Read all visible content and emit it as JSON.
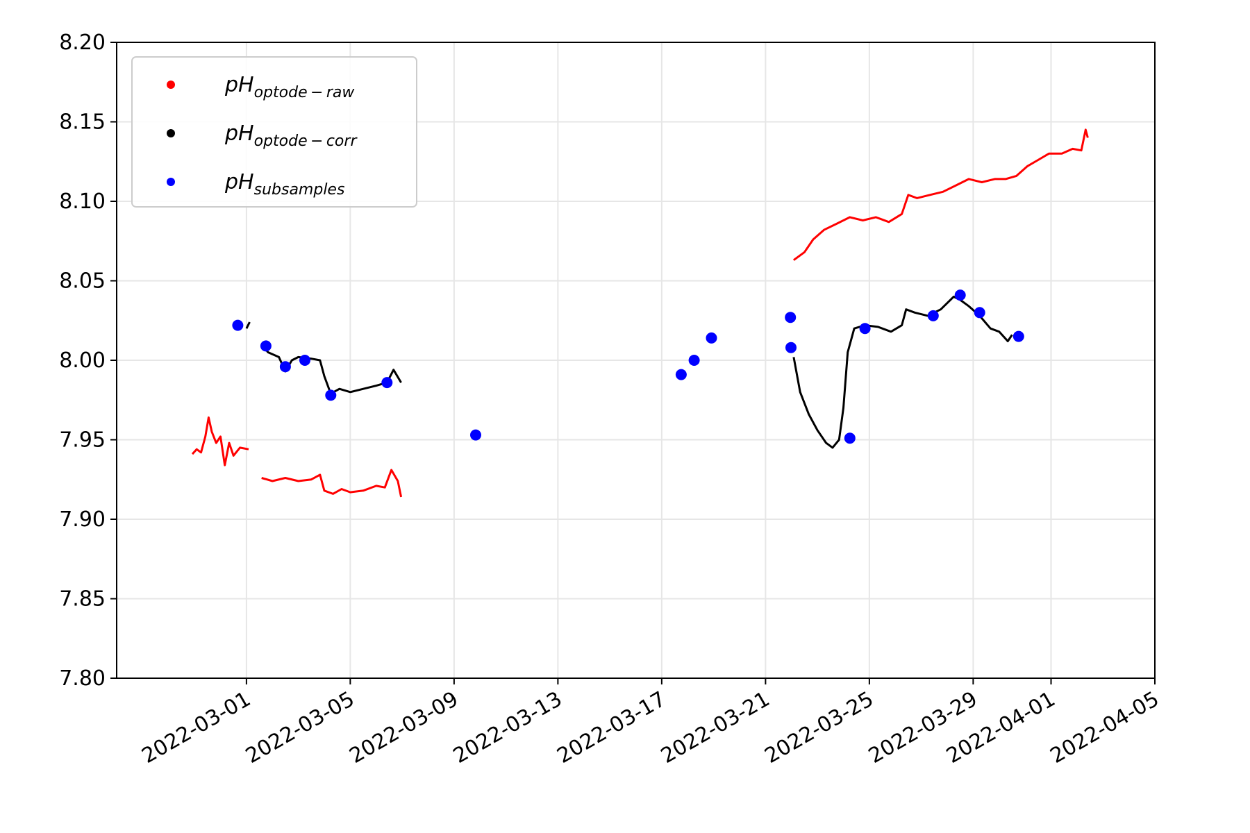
{
  "chart_data": {
    "type": "line",
    "title": "",
    "xlabel": "",
    "ylabel": "",
    "xlim": [
      "2022-02-24",
      "2022-04-05"
    ],
    "ylim": [
      7.8,
      8.2
    ],
    "grid": true,
    "legend_position": "top-left",
    "x_ticks": [
      "2022-03-01",
      "2022-03-05",
      "2022-03-09",
      "2022-03-13",
      "2022-03-17",
      "2022-03-21",
      "2022-03-25",
      "2022-03-29",
      "2022-04-01",
      "2022-04-05"
    ],
    "y_ticks": [
      "7.80",
      "7.85",
      "7.90",
      "7.95",
      "8.00",
      "8.05",
      "8.10",
      "8.15",
      "8.20"
    ],
    "legend": [
      {
        "base": "pH",
        "sub": "optode − raw",
        "color": "#ff0000"
      },
      {
        "base": "pH",
        "sub": "optode − corr",
        "color": "#000000"
      },
      {
        "base": "pH",
        "sub": "subsamples",
        "color": "#0000ff"
      }
    ],
    "series": [
      {
        "name": "pH optode-raw",
        "kind": "line",
        "color": "#ff0000",
        "segments": [
          [
            [
              "2022-02-26T22:00",
              7.941
            ],
            [
              "2022-02-27T02:00",
              7.944
            ],
            [
              "2022-02-27T06:00",
              7.942
            ],
            [
              "2022-02-27T10:00",
              7.952
            ],
            [
              "2022-02-27T13:00",
              7.964
            ],
            [
              "2022-02-27T16:00",
              7.955
            ],
            [
              "2022-02-27T20:00",
              7.948
            ],
            [
              "2022-02-28T00:00",
              7.952
            ],
            [
              "2022-02-28T04:00",
              7.934
            ],
            [
              "2022-02-28T08:00",
              7.948
            ],
            [
              "2022-02-28T12:00",
              7.94
            ],
            [
              "2022-02-28T18:00",
              7.945
            ],
            [
              "2022-03-01T02:00",
              7.944
            ]
          ],
          [
            [
              "2022-03-01T14:00",
              7.926
            ],
            [
              "2022-03-02T00:00",
              7.924
            ],
            [
              "2022-03-02T12:00",
              7.926
            ],
            [
              "2022-03-03T00:00",
              7.924
            ],
            [
              "2022-03-03T12:00",
              7.925
            ],
            [
              "2022-03-03T20:00",
              7.928
            ],
            [
              "2022-03-04T00:00",
              7.918
            ],
            [
              "2022-03-04T08:00",
              7.916
            ],
            [
              "2022-03-04T16:00",
              7.919
            ],
            [
              "2022-03-05T00:00",
              7.917
            ],
            [
              "2022-03-05T12:00",
              7.918
            ],
            [
              "2022-03-06T00:00",
              7.921
            ],
            [
              "2022-03-06T08:00",
              7.92
            ],
            [
              "2022-03-06T14:00",
              7.931
            ],
            [
              "2022-03-06T20:00",
              7.924
            ],
            [
              "2022-03-06T23:00",
              7.914
            ]
          ],
          [
            [
              "2022-03-22T02:00",
              8.063
            ],
            [
              "2022-03-22T12:00",
              8.068
            ],
            [
              "2022-03-22T20:00",
              8.076
            ],
            [
              "2022-03-23T06:00",
              8.082
            ],
            [
              "2022-03-23T18:00",
              8.086
            ],
            [
              "2022-03-24T06:00",
              8.09
            ],
            [
              "2022-03-24T18:00",
              8.088
            ],
            [
              "2022-03-25T06:00",
              8.09
            ],
            [
              "2022-03-25T18:00",
              8.087
            ],
            [
              "2022-03-26T06:00",
              8.092
            ],
            [
              "2022-03-26T12:00",
              8.104
            ],
            [
              "2022-03-26T20:00",
              8.102
            ],
            [
              "2022-03-27T08:00",
              8.104
            ],
            [
              "2022-03-27T20:00",
              8.106
            ],
            [
              "2022-03-28T08:00",
              8.11
            ],
            [
              "2022-03-28T20:00",
              8.114
            ],
            [
              "2022-03-29T08:00",
              8.112
            ],
            [
              "2022-03-29T20:00",
              8.114
            ],
            [
              "2022-03-30T06:00",
              8.114
            ],
            [
              "2022-03-30T16:00",
              8.116
            ],
            [
              "2022-03-31T02:00",
              8.122
            ],
            [
              "2022-03-31T12:00",
              8.126
            ],
            [
              "2022-03-31T22:00",
              8.13
            ],
            [
              "2022-04-01T10:00",
              8.13
            ],
            [
              "2022-04-01T20:00",
              8.133
            ],
            [
              "2022-04-02T04:00",
              8.132
            ],
            [
              "2022-04-02T08:00",
              8.145
            ],
            [
              "2022-04-02T10:00",
              8.14
            ]
          ]
        ]
      },
      {
        "name": "pH optode-corr",
        "kind": "line",
        "color": "#000000",
        "segments": [
          [
            [
              "2022-03-01T00:00",
              8.02
            ],
            [
              "2022-03-01T03:00",
              8.024
            ]
          ],
          [
            [
              "2022-03-01T14:00",
              8.01
            ],
            [
              "2022-03-01T20:00",
              8.005
            ],
            [
              "2022-03-02T06:00",
              8.002
            ],
            [
              "2022-03-02T12:00",
              7.993
            ],
            [
              "2022-03-02T18:00",
              8.0
            ],
            [
              "2022-03-03T00:00",
              8.002
            ],
            [
              "2022-03-03T12:00",
              8.001
            ],
            [
              "2022-03-03T20:00",
              8.0
            ],
            [
              "2022-03-04T00:00",
              7.99
            ],
            [
              "2022-03-04T06:00",
              7.979
            ],
            [
              "2022-03-04T14:00",
              7.982
            ],
            [
              "2022-03-05T00:00",
              7.98
            ],
            [
              "2022-03-05T12:00",
              7.982
            ],
            [
              "2022-03-06T00:00",
              7.984
            ],
            [
              "2022-03-06T10:00",
              7.986
            ],
            [
              "2022-03-06T16:00",
              7.994
            ],
            [
              "2022-03-06T23:00",
              7.986
            ]
          ],
          [
            [
              "2022-03-22T02:00",
              8.002
            ],
            [
              "2022-03-22T08:00",
              7.98
            ],
            [
              "2022-03-22T16:00",
              7.966
            ],
            [
              "2022-03-23T00:00",
              7.956
            ],
            [
              "2022-03-23T08:00",
              7.948
            ],
            [
              "2022-03-23T14:00",
              7.945
            ],
            [
              "2022-03-23T20:00",
              7.95
            ],
            [
              "2022-03-24T00:00",
              7.97
            ],
            [
              "2022-03-24T04:00",
              8.005
            ],
            [
              "2022-03-24T10:00",
              8.02
            ],
            [
              "2022-03-24T20:00",
              8.022
            ],
            [
              "2022-03-25T08:00",
              8.021
            ],
            [
              "2022-03-25T20:00",
              8.018
            ],
            [
              "2022-03-26T06:00",
              8.022
            ],
            [
              "2022-03-26T10:00",
              8.032
            ],
            [
              "2022-03-26T18:00",
              8.03
            ],
            [
              "2022-03-27T06:00",
              8.028
            ],
            [
              "2022-03-27T18:00",
              8.032
            ],
            [
              "2022-03-28T06:00",
              8.04
            ],
            [
              "2022-03-28T12:00",
              8.038
            ],
            [
              "2022-03-28T20:00",
              8.034
            ],
            [
              "2022-03-29T06:00",
              8.028
            ],
            [
              "2022-03-29T16:00",
              8.02
            ],
            [
              "2022-03-30T00:00",
              8.018
            ],
            [
              "2022-03-30T08:00",
              8.012
            ],
            [
              "2022-03-30T12:00",
              8.016
            ]
          ]
        ]
      },
      {
        "name": "pH subsamples",
        "kind": "scatter",
        "color": "#0000ff",
        "points": [
          [
            "2022-02-28T16:00",
            8.022
          ],
          [
            "2022-03-01T18:00",
            8.009
          ],
          [
            "2022-03-02T12:00",
            7.996
          ],
          [
            "2022-03-03T06:00",
            8.0
          ],
          [
            "2022-03-04T06:00",
            7.978
          ],
          [
            "2022-03-06T10:00",
            7.986
          ],
          [
            "2022-03-09T20:00",
            7.953
          ],
          [
            "2022-03-17T18:00",
            7.991
          ],
          [
            "2022-03-18T06:00",
            8.0
          ],
          [
            "2022-03-18T22:00",
            8.014
          ],
          [
            "2022-03-21T23:00",
            8.027
          ],
          [
            "2022-03-21T23:30",
            8.008
          ],
          [
            "2022-03-24T06:00",
            7.951
          ],
          [
            "2022-03-24T20:00",
            8.02
          ],
          [
            "2022-03-27T11:00",
            8.028
          ],
          [
            "2022-03-28T12:00",
            8.041
          ],
          [
            "2022-03-29T06:00",
            8.03
          ],
          [
            "2022-03-30T18:00",
            8.015
          ]
        ]
      }
    ]
  }
}
